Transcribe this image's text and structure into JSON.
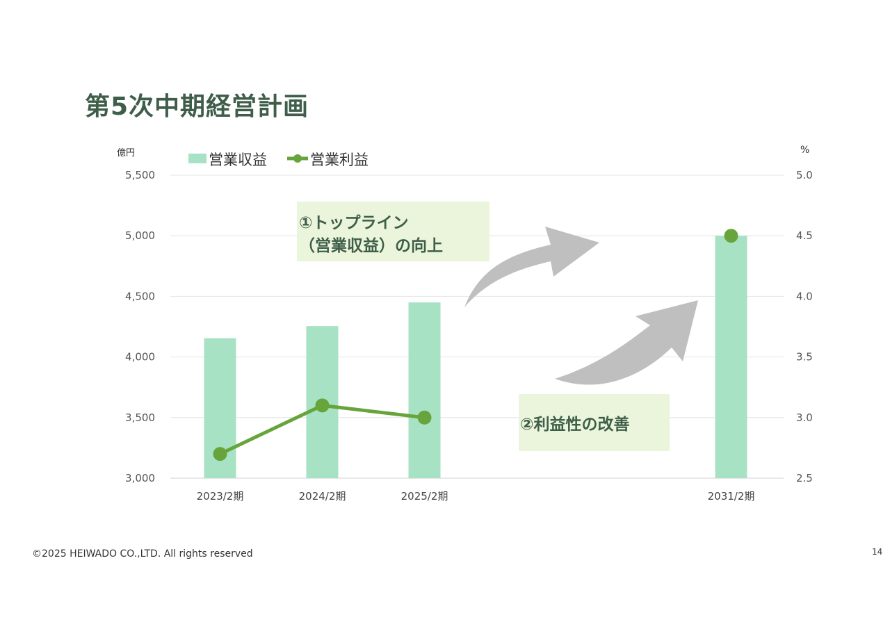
{
  "slide": {
    "title": "第5次中期経営計画",
    "footer": "©2025  HEIWADO CO.,LTD.  All rights reserved",
    "page_number": "14"
  },
  "chart_data": {
    "type": "bar",
    "categories": [
      "2023/2期",
      "2024/2期",
      "2025/2期",
      "",
      "",
      "2031/2期"
    ],
    "series": [
      {
        "name": "営業収益",
        "type": "bar",
        "axis": "left",
        "color": "#a8e2c4",
        "values": [
          4155,
          4255,
          4450,
          null,
          null,
          5000
        ]
      },
      {
        "name": "営業利益",
        "type": "line",
        "axis": "right",
        "color": "#67a53c",
        "values": [
          2.7,
          3.1,
          3.0,
          null,
          null,
          4.5
        ]
      }
    ],
    "y_left": {
      "unit": "億円",
      "ylim": [
        3000,
        5500
      ],
      "ticks": [
        "3,000",
        "3,500",
        "4,000",
        "4,500",
        "5,000",
        "5,500"
      ]
    },
    "y_right": {
      "unit": "%",
      "ylim": [
        2.5,
        5.0
      ],
      "ticks": [
        "2.5",
        "3.0",
        "3.5",
        "4.0",
        "4.5",
        "5.0"
      ]
    },
    "grid": true,
    "legend_position": "top-left",
    "annotations": [
      {
        "lines": [
          "①トップライン",
          "（営業収益）の向上"
        ],
        "box_color": "#ebf5db",
        "text_color": "#3f5e4a"
      },
      {
        "lines": [
          "②利益性の改善"
        ],
        "box_color": "#ebf5db",
        "text_color": "#3f5e4a"
      }
    ],
    "arrow_color": "#bfbfbf"
  }
}
